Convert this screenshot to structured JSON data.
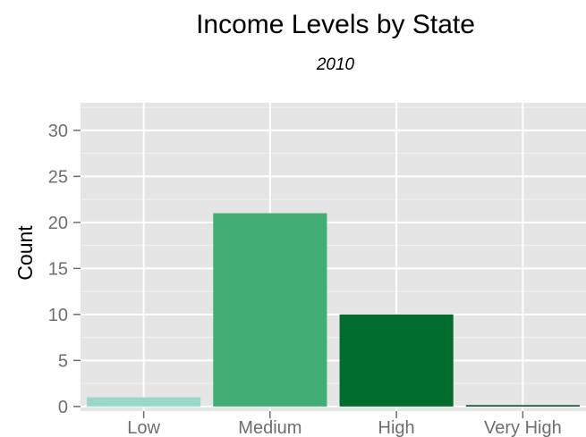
{
  "chart_data": {
    "type": "bar",
    "title": "Income Levels by State",
    "subtitle": "2010",
    "xlabel": "",
    "ylabel": "Count",
    "categories": [
      "Low",
      "Medium",
      "High",
      "Very High"
    ],
    "values": [
      1,
      21,
      10,
      0
    ],
    "colors": [
      "#99d8c9",
      "#41ae76",
      "#006d2c",
      "#00441b"
    ],
    "ylim": [
      -0.5,
      33
    ],
    "yticks": [
      0,
      5,
      10,
      15,
      20,
      25,
      30
    ],
    "grid": true,
    "panel_background": "#e5e5e5",
    "grid_color": "#ffffff",
    "legend": "none"
  }
}
